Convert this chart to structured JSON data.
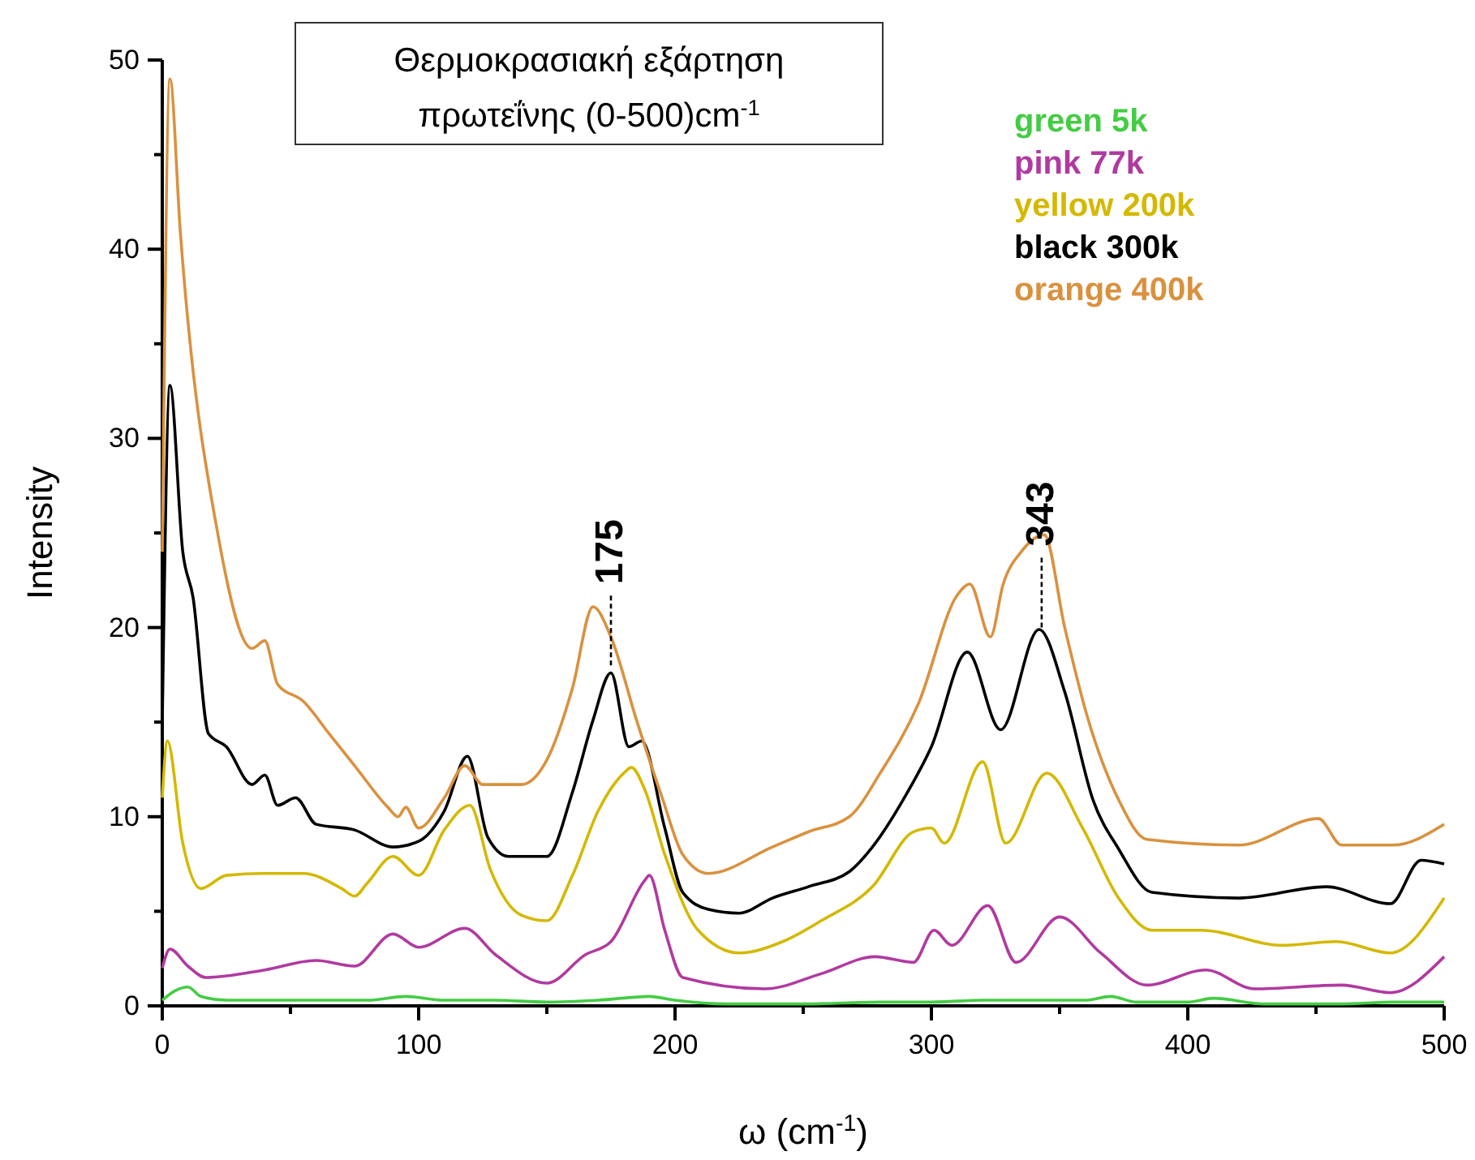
{
  "chart_data": {
    "type": "line",
    "title": "Θερμοκρασιακή  εξάρτηση",
    "subtitle": "πρωτεΐνης (0-500)cm$^{-1}$",
    "xlabel": "ω (cm$^{-1}$)",
    "ylabel": "Intensity",
    "xlim": [
      0,
      500
    ],
    "ylim": [
      0,
      50
    ],
    "xticks": [
      0,
      {
        "value": 50,
        "label": null
      },
      100,
      {
        "value": 150,
        "label": null
      },
      200,
      {
        "value": 250,
        "label": null
      },
      300,
      {
        "value": 350,
        "label": null
      },
      400,
      {
        "value": 450,
        "label": null
      },
      500
    ],
    "yticks": [
      0,
      {
        "value": 5,
        "label": null
      },
      10,
      {
        "value": 15,
        "label": null
      },
      20,
      {
        "value": 25,
        "label": null
      },
      30,
      {
        "value": 35,
        "label": null
      },
      40,
      {
        "value": 45,
        "label": null
      },
      50
    ],
    "grid": false,
    "legend": "top right",
    "marker": "none",
    "line_style": "solid",
    "annotations": [
      {
        "text": "175",
        "x": 175,
        "y": 18
      },
      {
        "text": "343",
        "x": 343,
        "y": 20
      }
    ],
    "series": [
      {
        "name": "green 5k",
        "color": "#44cc44",
        "x": [
          0,
          5,
          10,
          15,
          25,
          50,
          80,
          95,
          110,
          130,
          150,
          170,
          190,
          200,
          220,
          250,
          280,
          300,
          320,
          340,
          360,
          370,
          380,
          400,
          410,
          430,
          460,
          480,
          500
        ],
        "values": [
          0.3,
          0.8,
          1.0,
          0.5,
          0.3,
          0.3,
          0.3,
          0.5,
          0.3,
          0.3,
          0.2,
          0.3,
          0.5,
          0.3,
          0.1,
          0.1,
          0.2,
          0.2,
          0.3,
          0.3,
          0.3,
          0.5,
          0.2,
          0.2,
          0.4,
          0.1,
          0.1,
          0.2,
          0.2
        ]
      },
      {
        "name": "pink 77k",
        "color": "#b03aa0",
        "x": [
          0,
          3,
          10,
          17,
          40,
          60,
          75,
          90,
          100,
          118,
          130,
          150,
          165,
          175,
          188,
          190,
          196,
          203,
          235,
          257,
          278,
          293,
          301,
          308,
          322,
          333,
          350,
          366,
          384,
          407,
          426,
          460,
          479,
          500
        ],
        "values": [
          2.0,
          3.0,
          2.1,
          1.5,
          1.9,
          2.4,
          2.1,
          3.8,
          3.1,
          4.1,
          2.7,
          1.2,
          2.7,
          3.4,
          6.6,
          6.9,
          4.0,
          1.5,
          0.9,
          1.7,
          2.6,
          2.3,
          4.0,
          3.2,
          5.3,
          2.3,
          4.7,
          2.8,
          1.1,
          1.9,
          0.9,
          1.1,
          0.7,
          2.6
        ]
      },
      {
        "name": "yellow 200k",
        "color": "#d4b800",
        "x": [
          0,
          2,
          8,
          15,
          25,
          40,
          55,
          70,
          75,
          80,
          90,
          100,
          110,
          120,
          128,
          140,
          150,
          160,
          170,
          180,
          183,
          188,
          196,
          209,
          225,
          242,
          257,
          277,
          293,
          300,
          305,
          320,
          329,
          345,
          359,
          373,
          386,
          405,
          437,
          458,
          479,
          500
        ],
        "values": [
          11,
          14,
          8.6,
          6.2,
          6.9,
          7.0,
          7.0,
          6.2,
          5.8,
          6.5,
          7.9,
          6.9,
          9.3,
          10.6,
          7.2,
          4.8,
          4.5,
          6.9,
          10.3,
          12.3,
          12.6,
          11.5,
          8.0,
          4.0,
          2.8,
          3.4,
          4.5,
          6.3,
          9.2,
          9.4,
          8.6,
          12.9,
          8.6,
          12.3,
          9.4,
          5.7,
          4.0,
          4.0,
          3.2,
          3.4,
          2.8,
          5.7
        ]
      },
      {
        "name": "black 300k",
        "color": "#000000",
        "x": [
          0,
          3,
          8,
          12,
          18,
          25,
          35,
          40,
          45,
          52,
          60,
          75,
          90,
          100,
          110,
          119,
          127,
          135,
          150,
          160,
          168,
          175,
          182,
          187,
          196,
          203,
          213,
          225,
          238,
          252,
          268,
          277,
          289,
          300,
          314,
          327,
          342,
          352,
          363,
          373,
          386,
          420,
          454,
          479,
          491,
          500
        ],
        "values": [
          15,
          32.8,
          24,
          21.6,
          14.4,
          13.7,
          11.7,
          12.2,
          10.6,
          11,
          9.6,
          9.3,
          8.4,
          8.7,
          10.3,
          13.2,
          8.9,
          7.9,
          7.9,
          11.3,
          15.1,
          17.6,
          13.7,
          14,
          9.4,
          6,
          5.1,
          4.9,
          5.7,
          6.3,
          7.1,
          8.4,
          10.9,
          13.7,
          18.7,
          14.6,
          19.9,
          16.6,
          10.9,
          8.3,
          6,
          5.7,
          6.3,
          5.4,
          7.7,
          7.5
        ]
      },
      {
        "name": "orange 400k",
        "color": "#d9913f",
        "x": [
          0,
          3,
          7,
          22,
          35,
          40,
          45,
          55,
          65,
          75,
          88,
          92,
          95,
          100,
          110,
          118,
          125,
          140,
          150,
          160,
          168,
          175,
          185,
          195,
          203,
          213,
          238,
          252,
          268,
          280,
          295,
          310,
          315,
          323,
          328,
          335,
          344,
          352,
          361,
          373,
          384,
          420,
          451,
          460,
          480,
          500
        ],
        "values": [
          24,
          49,
          41,
          24.7,
          18.9,
          19.3,
          17,
          16.1,
          14.4,
          12.7,
          10.5,
          10,
          10.5,
          9.4,
          11,
          12.7,
          11.7,
          11.7,
          13,
          16.8,
          21.1,
          19.5,
          15.1,
          11,
          8,
          7,
          8.4,
          9.2,
          10,
          12.3,
          16,
          21.7,
          22.3,
          19.5,
          22.3,
          24,
          24.9,
          20,
          15.2,
          10.9,
          8.8,
          8.5,
          9.9,
          8.5,
          8.5,
          9.6
        ]
      }
    ]
  }
}
